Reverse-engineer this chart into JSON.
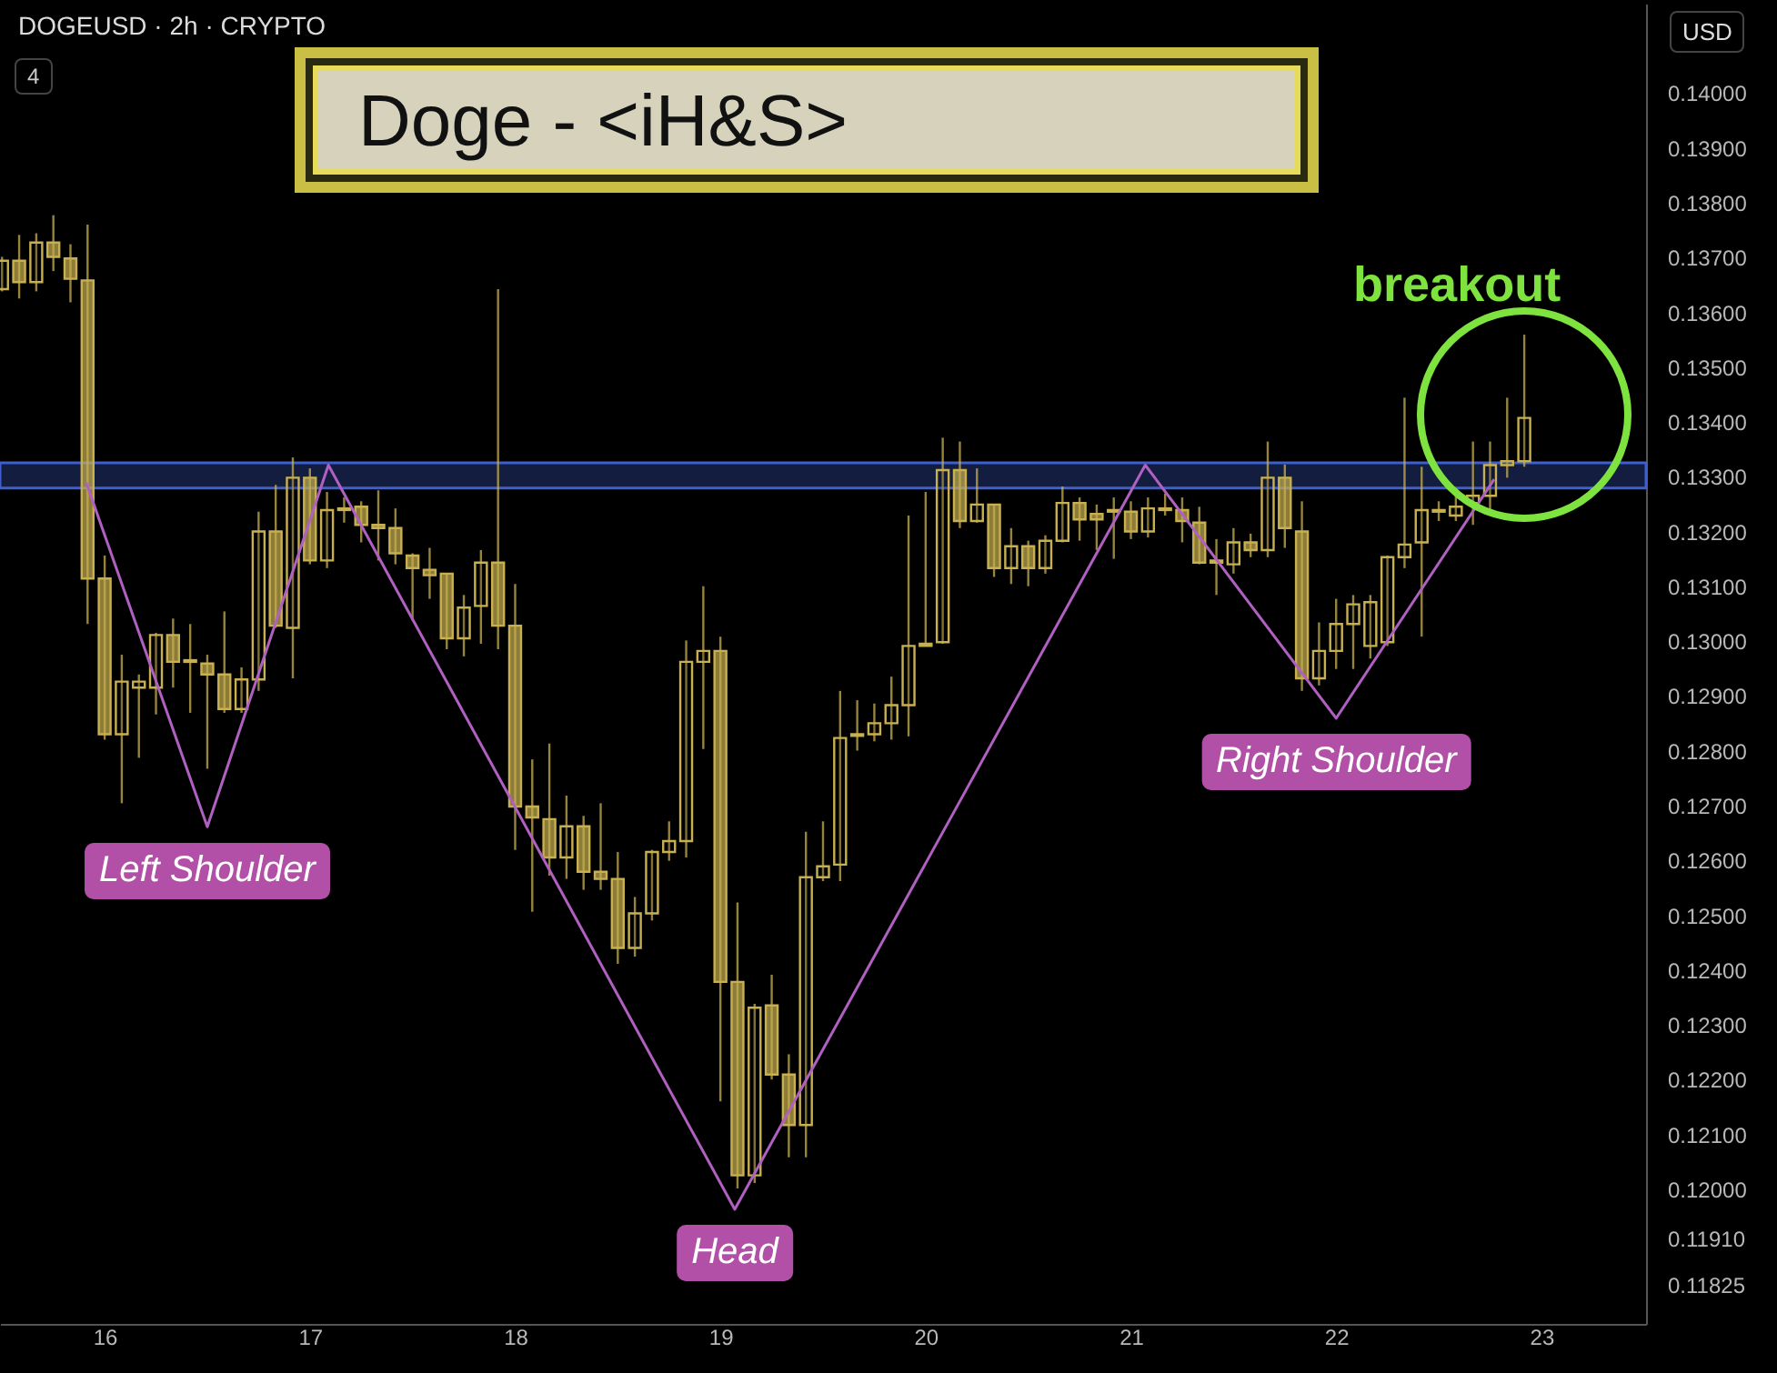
{
  "chart_data": {
    "type": "candlestick",
    "title": "Doge - <iH&S>",
    "subtitle": "DOGEUSD · 2h · CRYPTO",
    "ylabel": "USD",
    "color": "#c8b050",
    "x": [
      15.5,
      15.5833,
      15.6667,
      15.75,
      15.8333,
      15.9167,
      16,
      16.0833,
      16.1667,
      16.25,
      16.3333,
      16.4167,
      16.5,
      16.5833,
      16.6667,
      16.75,
      16.8333,
      16.9167,
      17,
      17.0833,
      17.1667,
      17.25,
      17.3333,
      17.4167,
      17.5,
      17.5833,
      17.6667,
      17.75,
      17.8333,
      17.9167,
      18,
      18.0833,
      18.1667,
      18.25,
      18.3333,
      18.4167,
      18.5,
      18.5833,
      18.6667,
      18.75,
      18.8333,
      18.9167,
      19,
      19.0833,
      19.1667,
      19.25,
      19.3333,
      19.4167,
      19.5,
      19.5833,
      19.6667,
      19.75,
      19.8333,
      19.9167,
      20,
      20.0833,
      20.1667,
      20.25,
      20.3333,
      20.4167,
      20.5,
      20.5833,
      20.6667,
      20.75,
      20.8333,
      20.9167,
      21,
      21.0833,
      21.1667,
      21.25,
      21.3333,
      21.4167,
      21.5,
      21.5833,
      21.6667,
      21.75,
      21.8333,
      21.9167,
      22,
      22.0833,
      22.1667,
      22.25,
      22.3333,
      22.4167,
      22.5,
      22.5833,
      22.6667,
      22.75,
      22.8333,
      22.9167
    ],
    "ohlc": [
      [
        0.13644,
        0.13703,
        0.1364,
        0.13696
      ],
      [
        0.13696,
        0.13743,
        0.13627,
        0.13657
      ],
      [
        0.13657,
        0.13746,
        0.1364,
        0.13729
      ],
      [
        0.13729,
        0.13779,
        0.13677,
        0.13703
      ],
      [
        0.137,
        0.13726,
        0.1362,
        0.13663
      ],
      [
        0.1366,
        0.13762,
        0.13033,
        0.13116
      ],
      [
        0.13116,
        0.13158,
        0.12822,
        0.12832
      ],
      [
        0.12832,
        0.12977,
        0.12706,
        0.12928
      ],
      [
        0.12917,
        0.12941,
        0.12789,
        0.12928
      ],
      [
        0.12917,
        0.13017,
        0.12868,
        0.13013
      ],
      [
        0.13013,
        0.13043,
        0.12917,
        0.12964
      ],
      [
        0.12967,
        0.13033,
        0.12871,
        0.12964
      ],
      [
        0.12961,
        0.12977,
        0.12769,
        0.12941
      ],
      [
        0.12941,
        0.13056,
        0.12871,
        0.12878
      ],
      [
        0.12878,
        0.12954,
        0.12871,
        0.12932
      ],
      [
        0.12932,
        0.13238,
        0.12911,
        0.13202
      ],
      [
        0.13202,
        0.13287,
        0.13026,
        0.1303
      ],
      [
        0.13026,
        0.13337,
        0.12934,
        0.133
      ],
      [
        0.133,
        0.13317,
        0.13142,
        0.13149
      ],
      [
        0.13149,
        0.13274,
        0.13135,
        0.13241
      ],
      [
        0.13244,
        0.13264,
        0.13218,
        0.13241
      ],
      [
        0.13247,
        0.13257,
        0.13182,
        0.13214
      ],
      [
        0.13214,
        0.13277,
        0.13149,
        0.13208
      ],
      [
        0.13208,
        0.13244,
        0.13142,
        0.13162
      ],
      [
        0.13158,
        0.13162,
        0.1304,
        0.13135
      ],
      [
        0.13132,
        0.13172,
        0.13079,
        0.13122
      ],
      [
        0.13125,
        0.13125,
        0.12987,
        0.13007
      ],
      [
        0.13007,
        0.13086,
        0.12974,
        0.13063
      ],
      [
        0.13066,
        0.13168,
        0.12997,
        0.13145
      ],
      [
        0.13145,
        0.13644,
        0.12987,
        0.1303
      ],
      [
        0.1303,
        0.13106,
        0.12621,
        0.127
      ],
      [
        0.127,
        0.12786,
        0.12508,
        0.1268
      ],
      [
        0.12677,
        0.12815,
        0.12574,
        0.12607
      ],
      [
        0.12607,
        0.1272,
        0.12568,
        0.12664
      ],
      [
        0.12664,
        0.12683,
        0.12548,
        0.12581
      ],
      [
        0.12581,
        0.12706,
        0.12548,
        0.12568
      ],
      [
        0.12568,
        0.12617,
        0.12413,
        0.12442
      ],
      [
        0.12442,
        0.12535,
        0.12426,
        0.12505
      ],
      [
        0.12505,
        0.12621,
        0.12492,
        0.12617
      ],
      [
        0.12617,
        0.12673,
        0.12601,
        0.12637
      ],
      [
        0.12637,
        0.13003,
        0.12607,
        0.12964
      ],
      [
        0.12964,
        0.13102,
        0.12805,
        0.12984
      ],
      [
        0.12984,
        0.1301,
        0.12162,
        0.1238
      ],
      [
        0.1238,
        0.12525,
        0.12003,
        0.12027
      ],
      [
        0.12027,
        0.1234,
        0.12013,
        0.12333
      ],
      [
        0.12337,
        0.12393,
        0.12202,
        0.12211
      ],
      [
        0.12211,
        0.12248,
        0.1206,
        0.12119
      ],
      [
        0.12119,
        0.12654,
        0.1206,
        0.12571
      ],
      [
        0.12571,
        0.12673,
        0.12564,
        0.12591
      ],
      [
        0.12594,
        0.12911,
        0.12564,
        0.12825
      ],
      [
        0.12832,
        0.12894,
        0.12802,
        0.12829
      ],
      [
        0.12832,
        0.12888,
        0.12819,
        0.12852
      ],
      [
        0.12852,
        0.12937,
        0.12822,
        0.12885
      ],
      [
        0.12885,
        0.13231,
        0.12828,
        0.12993
      ],
      [
        0.12993,
        0.13274,
        0.12993,
        0.12997
      ],
      [
        0.13,
        0.13373,
        0.12997,
        0.13314
      ],
      [
        0.13314,
        0.13366,
        0.13208,
        0.13221
      ],
      [
        0.13221,
        0.13317,
        0.13218,
        0.13251
      ],
      [
        0.13251,
        0.13251,
        0.13119,
        0.13135
      ],
      [
        0.13135,
        0.13208,
        0.13106,
        0.13175
      ],
      [
        0.13175,
        0.13185,
        0.13102,
        0.13135
      ],
      [
        0.13135,
        0.13195,
        0.13125,
        0.13185
      ],
      [
        0.13185,
        0.13284,
        0.13182,
        0.13254
      ],
      [
        0.13254,
        0.13264,
        0.13185,
        0.13224
      ],
      [
        0.13234,
        0.13251,
        0.13168,
        0.13224
      ],
      [
        0.13241,
        0.13264,
        0.13152,
        0.13238
      ],
      [
        0.13238,
        0.13257,
        0.13188,
        0.13202
      ],
      [
        0.13202,
        0.13264,
        0.13191,
        0.13244
      ],
      [
        0.13244,
        0.13271,
        0.13231,
        0.13241
      ],
      [
        0.13241,
        0.13264,
        0.13182,
        0.13221
      ],
      [
        0.13218,
        0.13247,
        0.13142,
        0.13145
      ],
      [
        0.13149,
        0.13188,
        0.13086,
        0.13145
      ],
      [
        0.13142,
        0.13208,
        0.13125,
        0.13182
      ],
      [
        0.13182,
        0.13198,
        0.13155,
        0.13168
      ],
      [
        0.13168,
        0.13366,
        0.13155,
        0.133
      ],
      [
        0.133,
        0.13324,
        0.13172,
        0.13208
      ],
      [
        0.13202,
        0.13257,
        0.12911,
        0.12934
      ],
      [
        0.12934,
        0.13036,
        0.12921,
        0.12984
      ],
      [
        0.12984,
        0.13079,
        0.12951,
        0.13033
      ],
      [
        0.13033,
        0.13086,
        0.12951,
        0.13069
      ],
      [
        0.12993,
        0.13086,
        0.1297,
        0.13073
      ],
      [
        0.13,
        0.13158,
        0.12993,
        0.13155
      ],
      [
        0.13155,
        0.13446,
        0.13135,
        0.13178
      ],
      [
        0.13182,
        0.1332,
        0.1301,
        0.13241
      ],
      [
        0.13241,
        0.13257,
        0.13221,
        0.13238
      ],
      [
        0.13231,
        0.13277,
        0.13221,
        0.13247
      ],
      [
        0.13254,
        0.13366,
        0.13214,
        0.13267
      ],
      [
        0.13267,
        0.13366,
        0.13238,
        0.13323
      ],
      [
        0.13323,
        0.13446,
        0.133,
        0.1333
      ],
      [
        0.1333,
        0.13561,
        0.1332,
        0.13409
      ]
    ],
    "series": [
      {
        "type": "line",
        "color": "#b060c0",
        "x": [
          15.91,
          16.5,
          17.09,
          19.07,
          21.07,
          22.0,
          22.77
        ],
        "values": [
          0.13291,
          0.12663,
          0.13323,
          0.11965,
          0.13323,
          0.12861,
          0.13297
        ]
      }
    ],
    "bands": [
      {
        "axis": "y",
        "from": 0.13281,
        "to": 0.13327,
        "color": "#3f5fd0"
      }
    ],
    "annotations": [
      "4",
      {
        "text": "Left Shoulder",
        "x": 16.5,
        "y": 0.12663
      },
      {
        "text": "Head",
        "x": 19.07,
        "y": 0.11965
      },
      {
        "text": "Right Shoulder",
        "x": 22.0,
        "y": 0.12861
      },
      {
        "text": "breakout",
        "x": 22.9167,
        "y": 0.13561
      }
    ],
    "xlim": [
      15.49,
      23.51
    ],
    "xticks": [
      16,
      17,
      18,
      19,
      20,
      21,
      22,
      23
    ],
    "ylim": [
      0.11756,
      0.14165
    ],
    "yticks": [
      {
        "value": 0.14,
        "label": "0.14000"
      },
      {
        "value": 0.139,
        "label": "0.13900"
      },
      {
        "value": 0.138,
        "label": "0.13800"
      },
      {
        "value": 0.137,
        "label": "0.13700"
      },
      {
        "value": 0.136,
        "label": "0.13600"
      },
      {
        "value": 0.135,
        "label": "0.13500"
      },
      {
        "value": 0.134,
        "label": "0.13400"
      },
      {
        "value": 0.133,
        "label": "0.13300"
      },
      {
        "value": 0.132,
        "label": "0.13200"
      },
      {
        "value": 0.131,
        "label": "0.13100"
      },
      {
        "value": 0.13,
        "label": "0.13000"
      },
      {
        "value": 0.129,
        "label": "0.12900"
      },
      {
        "value": 0.128,
        "label": "0.12800"
      },
      {
        "value": 0.127,
        "label": "0.12700"
      },
      {
        "value": 0.126,
        "label": "0.12600"
      },
      {
        "value": 0.125,
        "label": "0.12500"
      },
      {
        "value": 0.124,
        "label": "0.12400"
      },
      {
        "value": 0.123,
        "label": "0.12300"
      },
      {
        "value": 0.122,
        "label": "0.12200"
      },
      {
        "value": 0.121,
        "label": "0.12100"
      },
      {
        "value": 0.12,
        "label": "0.12000"
      },
      {
        "value": 0.1191,
        "label": "0.11910"
      },
      {
        "value": 0.11825,
        "label": "0.11825"
      }
    ]
  }
}
